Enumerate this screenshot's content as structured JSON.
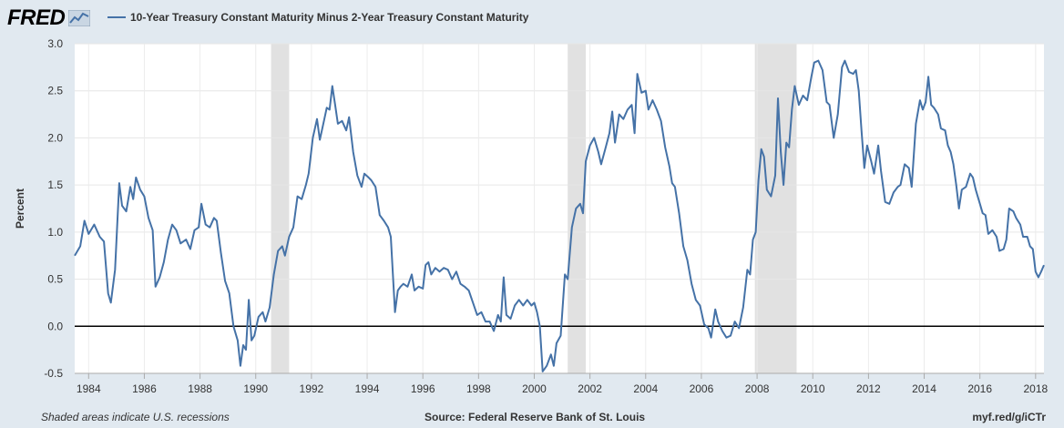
{
  "header": {
    "logo": "FRED",
    "logo_icon": "line-chart-icon",
    "legend_label": "10-Year Treasury Constant Maturity Minus 2-Year Treasury Constant Maturity",
    "legend_color": "#4572a7"
  },
  "footer": {
    "note": "Shaded areas indicate U.S. recessions",
    "source": "Source: Federal Reserve Bank of St. Louis",
    "link": "myf.red/g/iCTr"
  },
  "chart_data": {
    "type": "line",
    "ylabel": "Percent",
    "xlim": [
      1983.5,
      2018.3
    ],
    "ylim": [
      -0.5,
      3.0
    ],
    "yticks": [
      -0.5,
      0.0,
      0.5,
      1.0,
      1.5,
      2.0,
      2.5,
      3.0
    ],
    "ytick_labels": [
      "-0.5",
      "0.0",
      "0.5",
      "1.0",
      "1.5",
      "2.0",
      "2.5",
      "3.0"
    ],
    "xticks": [
      1984,
      1986,
      1988,
      1990,
      1992,
      1994,
      1996,
      1998,
      2000,
      2002,
      2004,
      2006,
      2008,
      2010,
      2012,
      2014,
      2016,
      2018
    ],
    "xtick_labels": [
      "1984",
      "1986",
      "1988",
      "1990",
      "1992",
      "1994",
      "1996",
      "1998",
      "2000",
      "2002",
      "2004",
      "2006",
      "2008",
      "2010",
      "2012",
      "2014",
      "2016",
      "2018"
    ],
    "grid": true,
    "zero_line": true,
    "recessions": [
      [
        1990.55,
        1991.2
      ],
      [
        2001.2,
        2001.85
      ],
      [
        2007.92,
        2009.42
      ]
    ],
    "series": [
      {
        "name": "10-Year Treasury Constant Maturity Minus 2-Year Treasury Constant Maturity",
        "color": "#4572a7",
        "points": [
          [
            1983.5,
            0.75
          ],
          [
            1983.7,
            0.85
          ],
          [
            1983.85,
            1.12
          ],
          [
            1984.0,
            0.98
          ],
          [
            1984.2,
            1.08
          ],
          [
            1984.4,
            0.95
          ],
          [
            1984.55,
            0.9
          ],
          [
            1984.7,
            0.35
          ],
          [
            1984.8,
            0.25
          ],
          [
            1984.95,
            0.6
          ],
          [
            1985.1,
            1.52
          ],
          [
            1985.2,
            1.28
          ],
          [
            1985.35,
            1.22
          ],
          [
            1985.5,
            1.48
          ],
          [
            1985.6,
            1.35
          ],
          [
            1985.7,
            1.58
          ],
          [
            1985.85,
            1.45
          ],
          [
            1986.0,
            1.38
          ],
          [
            1986.15,
            1.15
          ],
          [
            1986.3,
            1.02
          ],
          [
            1986.4,
            0.42
          ],
          [
            1986.55,
            0.52
          ],
          [
            1986.7,
            0.68
          ],
          [
            1986.85,
            0.92
          ],
          [
            1987.0,
            1.08
          ],
          [
            1987.15,
            1.02
          ],
          [
            1987.3,
            0.88
          ],
          [
            1987.5,
            0.92
          ],
          [
            1987.65,
            0.82
          ],
          [
            1987.8,
            1.02
          ],
          [
            1987.95,
            1.05
          ],
          [
            1988.05,
            1.3
          ],
          [
            1988.2,
            1.08
          ],
          [
            1988.35,
            1.05
          ],
          [
            1988.5,
            1.15
          ],
          [
            1988.6,
            1.12
          ],
          [
            1988.75,
            0.78
          ],
          [
            1988.9,
            0.48
          ],
          [
            1989.05,
            0.35
          ],
          [
            1989.2,
            0.0
          ],
          [
            1989.35,
            -0.15
          ],
          [
            1989.45,
            -0.42
          ],
          [
            1989.55,
            -0.2
          ],
          [
            1989.65,
            -0.25
          ],
          [
            1989.75,
            0.28
          ],
          [
            1989.85,
            -0.15
          ],
          [
            1989.95,
            -0.1
          ],
          [
            1990.1,
            0.1
          ],
          [
            1990.25,
            0.15
          ],
          [
            1990.35,
            0.05
          ],
          [
            1990.5,
            0.2
          ],
          [
            1990.65,
            0.55
          ],
          [
            1990.8,
            0.8
          ],
          [
            1990.95,
            0.85
          ],
          [
            1991.05,
            0.75
          ],
          [
            1991.2,
            0.95
          ],
          [
            1991.35,
            1.05
          ],
          [
            1991.5,
            1.38
          ],
          [
            1991.65,
            1.35
          ],
          [
            1991.8,
            1.5
          ],
          [
            1991.9,
            1.62
          ],
          [
            1992.05,
            2.0
          ],
          [
            1992.2,
            2.2
          ],
          [
            1992.3,
            1.98
          ],
          [
            1992.45,
            2.18
          ],
          [
            1992.55,
            2.32
          ],
          [
            1992.65,
            2.3
          ],
          [
            1992.75,
            2.55
          ],
          [
            1992.85,
            2.35
          ],
          [
            1992.95,
            2.15
          ],
          [
            1993.1,
            2.18
          ],
          [
            1993.25,
            2.08
          ],
          [
            1993.35,
            2.22
          ],
          [
            1993.5,
            1.85
          ],
          [
            1993.65,
            1.6
          ],
          [
            1993.8,
            1.48
          ],
          [
            1993.9,
            1.62
          ],
          [
            1994.05,
            1.58
          ],
          [
            1994.15,
            1.55
          ],
          [
            1994.3,
            1.48
          ],
          [
            1994.45,
            1.18
          ],
          [
            1994.6,
            1.12
          ],
          [
            1994.75,
            1.05
          ],
          [
            1994.85,
            0.95
          ],
          [
            1995.0,
            0.15
          ],
          [
            1995.1,
            0.38
          ],
          [
            1995.2,
            0.42
          ],
          [
            1995.3,
            0.45
          ],
          [
            1995.45,
            0.42
          ],
          [
            1995.6,
            0.55
          ],
          [
            1995.7,
            0.38
          ],
          [
            1995.85,
            0.42
          ],
          [
            1996.0,
            0.4
          ],
          [
            1996.1,
            0.65
          ],
          [
            1996.2,
            0.68
          ],
          [
            1996.3,
            0.55
          ],
          [
            1996.45,
            0.62
          ],
          [
            1996.6,
            0.58
          ],
          [
            1996.75,
            0.62
          ],
          [
            1996.9,
            0.6
          ],
          [
            1997.05,
            0.5
          ],
          [
            1997.2,
            0.58
          ],
          [
            1997.35,
            0.45
          ],
          [
            1997.5,
            0.42
          ],
          [
            1997.65,
            0.38
          ],
          [
            1997.8,
            0.25
          ],
          [
            1997.95,
            0.12
          ],
          [
            1998.1,
            0.15
          ],
          [
            1998.25,
            0.05
          ],
          [
            1998.4,
            0.05
          ],
          [
            1998.55,
            -0.05
          ],
          [
            1998.7,
            0.12
          ],
          [
            1998.8,
            0.05
          ],
          [
            1998.9,
            0.52
          ],
          [
            1999.0,
            0.12
          ],
          [
            1999.15,
            0.08
          ],
          [
            1999.3,
            0.22
          ],
          [
            1999.45,
            0.28
          ],
          [
            1999.6,
            0.22
          ],
          [
            1999.75,
            0.28
          ],
          [
            1999.9,
            0.22
          ],
          [
            2000.0,
            0.25
          ],
          [
            2000.1,
            0.15
          ],
          [
            2000.2,
            0.0
          ],
          [
            2000.3,
            -0.48
          ],
          [
            2000.45,
            -0.42
          ],
          [
            2000.6,
            -0.3
          ],
          [
            2000.7,
            -0.42
          ],
          [
            2000.8,
            -0.18
          ],
          [
            2000.95,
            -0.1
          ],
          [
            2001.1,
            0.55
          ],
          [
            2001.2,
            0.5
          ],
          [
            2001.35,
            1.05
          ],
          [
            2001.5,
            1.25
          ],
          [
            2001.65,
            1.3
          ],
          [
            2001.75,
            1.2
          ],
          [
            2001.85,
            1.75
          ],
          [
            2002.0,
            1.92
          ],
          [
            2002.15,
            2.0
          ],
          [
            2002.3,
            1.85
          ],
          [
            2002.4,
            1.72
          ],
          [
            2002.55,
            1.88
          ],
          [
            2002.7,
            2.05
          ],
          [
            2002.8,
            2.28
          ],
          [
            2002.9,
            1.95
          ],
          [
            2003.05,
            2.25
          ],
          [
            2003.2,
            2.2
          ],
          [
            2003.35,
            2.3
          ],
          [
            2003.5,
            2.35
          ],
          [
            2003.6,
            2.05
          ],
          [
            2003.7,
            2.68
          ],
          [
            2003.85,
            2.48
          ],
          [
            2004.0,
            2.5
          ],
          [
            2004.1,
            2.3
          ],
          [
            2004.25,
            2.4
          ],
          [
            2004.4,
            2.3
          ],
          [
            2004.55,
            2.18
          ],
          [
            2004.7,
            1.9
          ],
          [
            2004.85,
            1.7
          ],
          [
            2004.95,
            1.52
          ],
          [
            2005.05,
            1.48
          ],
          [
            2005.2,
            1.2
          ],
          [
            2005.35,
            0.85
          ],
          [
            2005.5,
            0.7
          ],
          [
            2005.65,
            0.45
          ],
          [
            2005.8,
            0.28
          ],
          [
            2005.95,
            0.22
          ],
          [
            2006.1,
            0.02
          ],
          [
            2006.25,
            -0.02
          ],
          [
            2006.35,
            -0.12
          ],
          [
            2006.5,
            0.18
          ],
          [
            2006.6,
            0.05
          ],
          [
            2006.75,
            -0.05
          ],
          [
            2006.9,
            -0.12
          ],
          [
            2007.05,
            -0.1
          ],
          [
            2007.2,
            0.05
          ],
          [
            2007.35,
            -0.02
          ],
          [
            2007.5,
            0.2
          ],
          [
            2007.65,
            0.6
          ],
          [
            2007.75,
            0.55
          ],
          [
            2007.85,
            0.92
          ],
          [
            2007.95,
            1.0
          ],
          [
            2008.05,
            1.55
          ],
          [
            2008.15,
            1.88
          ],
          [
            2008.25,
            1.8
          ],
          [
            2008.35,
            1.45
          ],
          [
            2008.5,
            1.38
          ],
          [
            2008.65,
            1.6
          ],
          [
            2008.75,
            2.42
          ],
          [
            2008.85,
            1.85
          ],
          [
            2008.95,
            1.5
          ],
          [
            2009.05,
            1.95
          ],
          [
            2009.15,
            1.9
          ],
          [
            2009.25,
            2.3
          ],
          [
            2009.35,
            2.55
          ],
          [
            2009.5,
            2.35
          ],
          [
            2009.65,
            2.45
          ],
          [
            2009.8,
            2.4
          ],
          [
            2009.95,
            2.65
          ],
          [
            2010.05,
            2.8
          ],
          [
            2010.2,
            2.82
          ],
          [
            2010.35,
            2.72
          ],
          [
            2010.5,
            2.38
          ],
          [
            2010.6,
            2.35
          ],
          [
            2010.75,
            2.0
          ],
          [
            2010.9,
            2.25
          ],
          [
            2011.05,
            2.75
          ],
          [
            2011.15,
            2.82
          ],
          [
            2011.3,
            2.7
          ],
          [
            2011.45,
            2.68
          ],
          [
            2011.55,
            2.72
          ],
          [
            2011.65,
            2.5
          ],
          [
            2011.75,
            2.08
          ],
          [
            2011.85,
            1.68
          ],
          [
            2011.95,
            1.92
          ],
          [
            2012.1,
            1.75
          ],
          [
            2012.2,
            1.62
          ],
          [
            2012.35,
            1.92
          ],
          [
            2012.45,
            1.65
          ],
          [
            2012.6,
            1.32
          ],
          [
            2012.75,
            1.3
          ],
          [
            2012.9,
            1.42
          ],
          [
            2013.05,
            1.48
          ],
          [
            2013.15,
            1.5
          ],
          [
            2013.3,
            1.72
          ],
          [
            2013.45,
            1.68
          ],
          [
            2013.55,
            1.48
          ],
          [
            2013.7,
            2.15
          ],
          [
            2013.85,
            2.4
          ],
          [
            2013.95,
            2.3
          ],
          [
            2014.05,
            2.38
          ],
          [
            2014.15,
            2.65
          ],
          [
            2014.25,
            2.35
          ],
          [
            2014.35,
            2.32
          ],
          [
            2014.5,
            2.25
          ],
          [
            2014.6,
            2.1
          ],
          [
            2014.75,
            2.08
          ],
          [
            2014.85,
            1.92
          ],
          [
            2014.95,
            1.85
          ],
          [
            2015.05,
            1.72
          ],
          [
            2015.15,
            1.5
          ],
          [
            2015.25,
            1.25
          ],
          [
            2015.35,
            1.45
          ],
          [
            2015.5,
            1.48
          ],
          [
            2015.65,
            1.62
          ],
          [
            2015.75,
            1.58
          ],
          [
            2015.85,
            1.45
          ],
          [
            2016.0,
            1.3
          ],
          [
            2016.1,
            1.2
          ],
          [
            2016.2,
            1.18
          ],
          [
            2016.3,
            0.98
          ],
          [
            2016.45,
            1.02
          ],
          [
            2016.6,
            0.95
          ],
          [
            2016.7,
            0.8
          ],
          [
            2016.85,
            0.82
          ],
          [
            2016.95,
            0.92
          ],
          [
            2017.05,
            1.25
          ],
          [
            2017.2,
            1.22
          ],
          [
            2017.3,
            1.15
          ],
          [
            2017.45,
            1.08
          ],
          [
            2017.55,
            0.95
          ],
          [
            2017.7,
            0.95
          ],
          [
            2017.8,
            0.85
          ],
          [
            2017.9,
            0.82
          ],
          [
            2018.0,
            0.58
          ],
          [
            2018.1,
            0.52
          ],
          [
            2018.2,
            0.58
          ],
          [
            2018.3,
            0.65
          ]
        ]
      }
    ]
  }
}
